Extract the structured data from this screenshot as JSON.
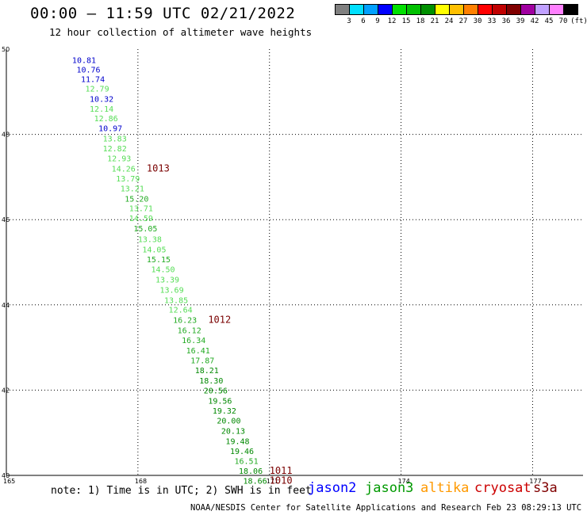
{
  "header": {
    "title": "00:00 – 11:59 UTC 02/21/2022",
    "subtitle": "12 hour collection of altimeter wave heights"
  },
  "legend": {
    "unit": "(ft)",
    "bins": [
      {
        "label": "3",
        "color": "#808080"
      },
      {
        "label": "6",
        "color": "#00e0ff"
      },
      {
        "label": "9",
        "color": "#00a0ff"
      },
      {
        "label": "12",
        "color": "#0000ff"
      },
      {
        "label": "15",
        "color": "#00e000"
      },
      {
        "label": "18",
        "color": "#00c000"
      },
      {
        "label": "21",
        "color": "#009000"
      },
      {
        "label": "24",
        "color": "#ffff00"
      },
      {
        "label": "27",
        "color": "#ffc000"
      },
      {
        "label": "30",
        "color": "#ff8000"
      },
      {
        "label": "33",
        "color": "#ff0000"
      },
      {
        "label": "36",
        "color": "#c00000"
      },
      {
        "label": "39",
        "color": "#800000"
      },
      {
        "label": "42",
        "color": "#a000a0"
      },
      {
        "label": "45",
        "color": "#c0a0ff"
      },
      {
        "label": "70",
        "color": "#ff80ff"
      },
      {
        "label": "",
        "color": "#000000"
      }
    ]
  },
  "map": {
    "lat_range": [
      40,
      50
    ],
    "lon_range": [
      165,
      179
    ],
    "lat_ticks": [
      "40",
      "42",
      "44",
      "46",
      "48",
      "50"
    ],
    "lon_ticks": [
      "165",
      "168",
      "171",
      "174",
      "177"
    ],
    "observations": [
      {
        "lon": 166.5,
        "lat": 49.75,
        "value": "10.81",
        "color": "#0000cc"
      },
      {
        "lon": 166.6,
        "lat": 49.53,
        "value": "10.76",
        "color": "#0000cc"
      },
      {
        "lon": 166.7,
        "lat": 49.3,
        "value": "11.74",
        "color": "#0000cc"
      },
      {
        "lon": 166.8,
        "lat": 49.08,
        "value": "12.79",
        "color": "#55dd55"
      },
      {
        "lon": 166.9,
        "lat": 48.84,
        "value": "10.32",
        "color": "#0000cc"
      },
      {
        "lon": 166.9,
        "lat": 48.61,
        "value": "12.14",
        "color": "#55dd55"
      },
      {
        "lon": 167.0,
        "lat": 48.38,
        "value": "12.86",
        "color": "#55dd55"
      },
      {
        "lon": 167.1,
        "lat": 48.15,
        "value": "10.97",
        "color": "#0000cc"
      },
      {
        "lon": 167.2,
        "lat": 47.91,
        "value": "13.83",
        "color": "#55dd55"
      },
      {
        "lon": 167.2,
        "lat": 47.68,
        "value": "12.82",
        "color": "#55dd55"
      },
      {
        "lon": 167.3,
        "lat": 47.44,
        "value": "12.93",
        "color": "#55dd55"
      },
      {
        "lon": 167.4,
        "lat": 47.2,
        "value": "14.26",
        "color": "#55dd55"
      },
      {
        "lon": 167.5,
        "lat": 46.97,
        "value": "13.79",
        "color": "#55dd55"
      },
      {
        "lon": 167.6,
        "lat": 46.74,
        "value": "13.21",
        "color": "#55dd55"
      },
      {
        "lon": 167.7,
        "lat": 46.5,
        "value": "15.20",
        "color": "#22aa22"
      },
      {
        "lon": 167.8,
        "lat": 46.27,
        "value": "13.71",
        "color": "#55dd55"
      },
      {
        "lon": 167.8,
        "lat": 46.04,
        "value": "14.59",
        "color": "#55dd55"
      },
      {
        "lon": 167.9,
        "lat": 45.8,
        "value": "15.05",
        "color": "#22aa22"
      },
      {
        "lon": 168.0,
        "lat": 45.55,
        "value": "13.38",
        "color": "#55dd55"
      },
      {
        "lon": 168.1,
        "lat": 45.31,
        "value": "14.05",
        "color": "#55dd55"
      },
      {
        "lon": 168.2,
        "lat": 45.07,
        "value": "15.15",
        "color": "#22aa22"
      },
      {
        "lon": 168.3,
        "lat": 44.84,
        "value": "14.50",
        "color": "#55dd55"
      },
      {
        "lon": 168.4,
        "lat": 44.6,
        "value": "13.39",
        "color": "#55dd55"
      },
      {
        "lon": 168.5,
        "lat": 44.36,
        "value": "13.69",
        "color": "#55dd55"
      },
      {
        "lon": 168.6,
        "lat": 44.12,
        "value": "13.85",
        "color": "#55dd55"
      },
      {
        "lon": 168.7,
        "lat": 43.89,
        "value": "12.64",
        "color": "#55dd55"
      },
      {
        "lon": 168.8,
        "lat": 43.65,
        "value": "16.23",
        "color": "#22aa22"
      },
      {
        "lon": 168.9,
        "lat": 43.41,
        "value": "16.12",
        "color": "#22aa22"
      },
      {
        "lon": 169.0,
        "lat": 43.18,
        "value": "16.34",
        "color": "#22aa22"
      },
      {
        "lon": 169.1,
        "lat": 42.94,
        "value": "16.41",
        "color": "#22aa22"
      },
      {
        "lon": 169.2,
        "lat": 42.7,
        "value": "17.87",
        "color": "#22aa22"
      },
      {
        "lon": 169.3,
        "lat": 42.47,
        "value": "18.21",
        "color": "#008800"
      },
      {
        "lon": 169.4,
        "lat": 42.23,
        "value": "18.30",
        "color": "#008800"
      },
      {
        "lon": 169.5,
        "lat": 42.0,
        "value": "20.56",
        "color": "#008800"
      },
      {
        "lon": 169.6,
        "lat": 41.76,
        "value": "19.56",
        "color": "#008800"
      },
      {
        "lon": 169.7,
        "lat": 41.52,
        "value": "19.32",
        "color": "#008800"
      },
      {
        "lon": 169.8,
        "lat": 41.29,
        "value": "20.00",
        "color": "#008800"
      },
      {
        "lon": 169.9,
        "lat": 41.05,
        "value": "20.13",
        "color": "#008800"
      },
      {
        "lon": 170.0,
        "lat": 40.81,
        "value": "19.48",
        "color": "#008800"
      },
      {
        "lon": 170.1,
        "lat": 40.58,
        "value": "19.46",
        "color": "#008800"
      },
      {
        "lon": 170.2,
        "lat": 40.34,
        "value": "16.51",
        "color": "#22aa22"
      },
      {
        "lon": 170.3,
        "lat": 40.11,
        "value": "18.06",
        "color": "#008800"
      },
      {
        "lon": 170.4,
        "lat": 39.88,
        "value": "18.66",
        "color": "#008800"
      }
    ],
    "pressures": [
      {
        "lon": 168.2,
        "lat": 47.2,
        "value": "1013"
      },
      {
        "lon": 169.6,
        "lat": 43.65,
        "value": "1012"
      },
      {
        "lon": 171.0,
        "lat": 40.11,
        "value": "1011"
      },
      {
        "lon": 171.0,
        "lat": 39.88,
        "value": "1010"
      }
    ]
  },
  "footer": {
    "note": "note: 1) Time is in UTC; 2) SWH is in feet",
    "satellites": [
      {
        "name": "jason2",
        "color": "#0000ff"
      },
      {
        "name": "jason3",
        "color": "#009900"
      },
      {
        "name": "altika",
        "color": "#ff9900"
      },
      {
        "name": "cryosat",
        "color": "#cc0000"
      },
      {
        "name": "s3a",
        "color": "#800000"
      }
    ],
    "credit": "NOAA/NESDIS Center for Satellite Applications and Research   Feb 23 08:29:13 UTC 2022"
  }
}
